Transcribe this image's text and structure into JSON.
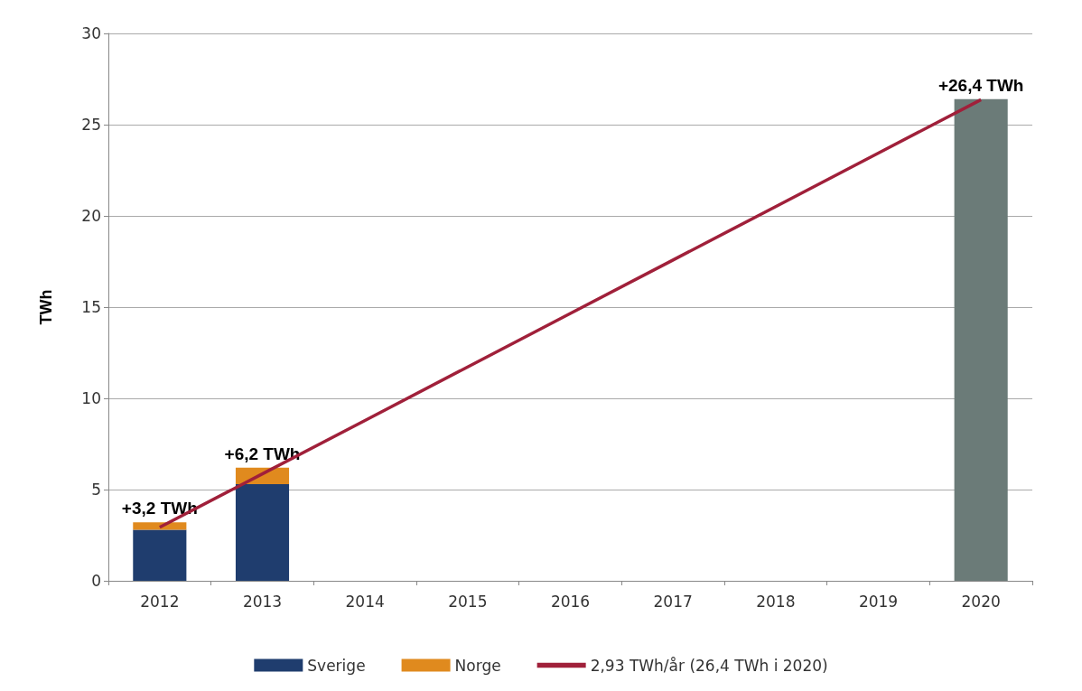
{
  "chart_data": {
    "type": "bar",
    "ylabel": "TWh",
    "categories": [
      "2012",
      "2013",
      "2014",
      "2015",
      "2016",
      "2017",
      "2018",
      "2019",
      "2020"
    ],
    "stacked": true,
    "series": [
      {
        "name": "Sverige",
        "color": "#1f3d6e",
        "values": [
          2.8,
          5.3,
          null,
          null,
          null,
          null,
          null,
          null,
          null
        ]
      },
      {
        "name": "Norge",
        "color": "#e08a1e",
        "values": [
          0.4,
          0.9,
          null,
          null,
          null,
          null,
          null,
          null,
          null
        ]
      },
      {
        "color": "#6b7b78",
        "values": [
          null,
          null,
          null,
          null,
          null,
          null,
          null,
          null,
          26.4
        ]
      },
      {
        "name": "2,93 TWh/år (26,4 TWh i 2020)",
        "type": "line",
        "color": "#a0203a",
        "values": [
          2.93,
          5.86,
          8.79,
          11.72,
          14.65,
          17.58,
          20.51,
          23.44,
          26.37
        ]
      }
    ],
    "ylim": [
      0,
      30
    ],
    "yticks": [
      0,
      5,
      10,
      15,
      20,
      25,
      30
    ],
    "grid": "y",
    "legend": "bottom",
    "marker": "none",
    "annotations": [
      {
        "text": "+3,2 TWh",
        "x": "2012",
        "y": 3.2
      },
      {
        "text": "+6,2 TWh",
        "x": "2013",
        "y": 6.2
      },
      {
        "text": "+26,4 TWh",
        "x": "2020",
        "y": 26.4
      }
    ]
  }
}
